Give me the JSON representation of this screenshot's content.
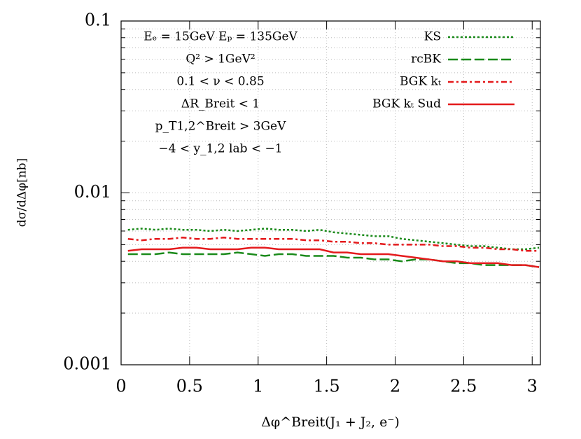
{
  "chart_data": {
    "type": "line",
    "annotations": [
      "Eₑ = 15GeV Eₚ = 135GeV",
      "Q² > 1GeV²",
      "0.1 < ν < 0.85",
      "ΔR_Breit < 1",
      "p_T1,2^Breit > 3GeV",
      "−4 < y_1,2 lab < −1"
    ],
    "xlabel": "Δφ^Breit(J₁ + J₂, e⁻)",
    "ylabel": "dσ/dΔφ[nb]",
    "x": [
      0.05,
      0.15,
      0.25,
      0.35,
      0.45,
      0.55,
      0.65,
      0.75,
      0.85,
      0.95,
      1.05,
      1.15,
      1.25,
      1.35,
      1.45,
      1.55,
      1.65,
      1.75,
      1.85,
      1.95,
      2.05,
      2.15,
      2.25,
      2.35,
      2.45,
      2.55,
      2.65,
      2.75,
      2.85,
      2.95,
      3.05
    ],
    "series": [
      {
        "name": "KS",
        "color": "#1a8a1a",
        "style": "dotted",
        "values": [
          0.0061,
          0.0062,
          0.0061,
          0.0062,
          0.0061,
          0.0061,
          0.006,
          0.0061,
          0.006,
          0.0061,
          0.0062,
          0.0061,
          0.0061,
          0.006,
          0.0061,
          0.0059,
          0.0058,
          0.0057,
          0.0056,
          0.0056,
          0.0054,
          0.0053,
          0.0052,
          0.0051,
          0.005,
          0.0049,
          0.0049,
          0.0048,
          0.0047,
          0.0047,
          0.0048
        ]
      },
      {
        "name": "rcBK",
        "color": "#1a8a1a",
        "style": "dashed",
        "values": [
          0.0044,
          0.0044,
          0.0044,
          0.0045,
          0.0044,
          0.0044,
          0.0044,
          0.0044,
          0.0045,
          0.0044,
          0.0043,
          0.0044,
          0.0044,
          0.0043,
          0.0043,
          0.0043,
          0.0042,
          0.0042,
          0.0041,
          0.0041,
          0.004,
          0.0041,
          0.0041,
          0.004,
          0.0039,
          0.0039,
          0.0038,
          0.0038,
          0.0038,
          0.0038,
          0.0037
        ]
      },
      {
        "name": "BGK kₜ",
        "color": "#e41a1c",
        "style": "dashdot",
        "values": [
          0.0054,
          0.0053,
          0.0054,
          0.0054,
          0.0055,
          0.0054,
          0.0054,
          0.0055,
          0.0054,
          0.0054,
          0.0054,
          0.0054,
          0.0054,
          0.0053,
          0.0053,
          0.0052,
          0.0052,
          0.0051,
          0.0051,
          0.005,
          0.005,
          0.005,
          0.005,
          0.0049,
          0.0049,
          0.0048,
          0.0048,
          0.0047,
          0.0047,
          0.0046,
          0.0046
        ]
      },
      {
        "name": "BGK kₜ Sud",
        "color": "#e41a1c",
        "style": "solid",
        "values": [
          0.0046,
          0.0047,
          0.0047,
          0.0047,
          0.0048,
          0.0048,
          0.0047,
          0.0047,
          0.0047,
          0.0048,
          0.0048,
          0.0047,
          0.0047,
          0.0047,
          0.0047,
          0.0045,
          0.0045,
          0.0044,
          0.0044,
          0.0044,
          0.0043,
          0.0042,
          0.0041,
          0.004,
          0.004,
          0.0039,
          0.0039,
          0.0039,
          0.0038,
          0.0038,
          0.0037
        ]
      }
    ],
    "xlim": [
      0,
      3.06
    ],
    "xticks": [
      0,
      0.5,
      1,
      1.5,
      2,
      2.5,
      3
    ],
    "ylim": [
      0.001,
      0.1
    ],
    "yticks": [
      0.001,
      0.01,
      0.1
    ],
    "log_y": true,
    "grid": true,
    "legend": "top-right"
  }
}
